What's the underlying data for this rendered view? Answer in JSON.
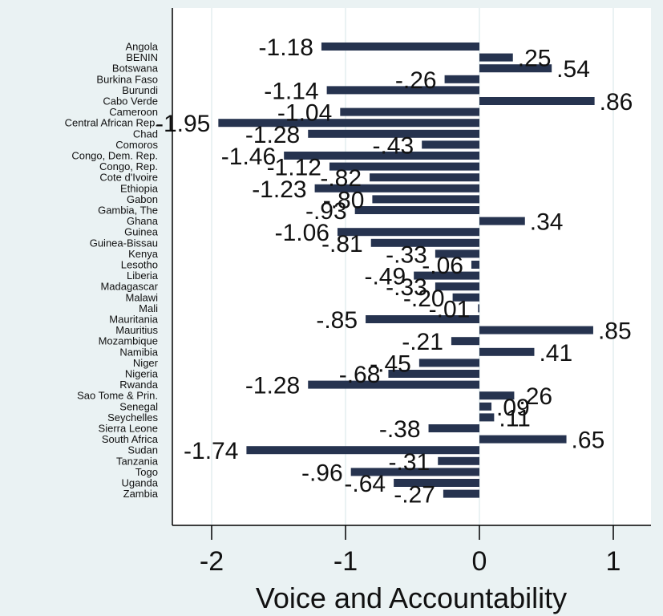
{
  "chart_data": {
    "type": "bar",
    "orientation": "horizontal",
    "xlabel": "Voice and Accountability",
    "ylabel": "",
    "title": "",
    "xlim": [
      -2.3,
      1.3
    ],
    "xticks": [
      -2,
      -1,
      0,
      1
    ],
    "tick_labels": [
      "-2",
      "-1",
      "0",
      "1"
    ],
    "grid": true,
    "legend": "none",
    "bar_color": "#26334f",
    "gridline_color": "#ffffff",
    "background_color": "#eaf2f3",
    "plot_background_color": "#ffffff",
    "categories": [
      "Angola",
      "BENIN",
      "Botswana",
      "Burkina Faso",
      "Burundi",
      "Cabo Verde",
      "Cameroon",
      "Central African Rep.",
      "Chad",
      "Comoros",
      "Congo, Dem. Rep.",
      "Congo, Rep.",
      "Cote d'Ivoire",
      "Ethiopia",
      "Gabon",
      "Gambia, The",
      "Ghana",
      "Guinea",
      "Guinea-Bissau",
      "Kenya",
      "Lesotho",
      "Liberia",
      "Madagascar",
      "Malawi",
      "Mali",
      "Mauritania",
      "Mauritius",
      "Mozambique",
      "Namibia",
      "Niger",
      "Nigeria",
      "Rwanda",
      "Sao Tome & Prin.",
      "Senegal",
      "Seychelles",
      "Sierra Leone",
      "South Africa",
      "Sudan",
      "Tanzania",
      "Togo",
      "Uganda",
      "Zambia"
    ],
    "values": [
      -1.18,
      0.25,
      0.54,
      -0.26,
      -1.14,
      0.86,
      -1.04,
      -1.95,
      -1.28,
      -0.43,
      -1.46,
      -1.12,
      -0.82,
      -1.23,
      -0.8,
      -0.93,
      0.34,
      -1.06,
      -0.81,
      -0.33,
      -0.06,
      -0.49,
      -0.33,
      -0.2,
      -0.01,
      -0.85,
      0.85,
      -0.21,
      0.41,
      -0.45,
      -0.68,
      -1.28,
      0.26,
      0.09,
      0.11,
      -0.38,
      0.65,
      -1.74,
      -0.31,
      -0.96,
      -0.64,
      -0.27
    ],
    "data_labels": [
      "-1.18",
      ".25",
      ".54",
      "-.26",
      "-1.14",
      ".86",
      "-1.04",
      "-1.95",
      "-1.28",
      "-.43",
      "-1.46",
      "-1.12",
      "-.82",
      "-1.23",
      "-.80",
      "-.93",
      ".34",
      "-1.06",
      "-.81",
      "-.33",
      "-.06",
      "-.49",
      "-.33",
      "-.20",
      "-.01",
      "-.85",
      ".85",
      "-.21",
      ".41",
      "-.45",
      "-.68",
      "-1.28",
      ".26",
      ".09",
      ".11",
      "-.38",
      ".65",
      "-1.74",
      "-.31",
      "-.96",
      "-.64",
      "-.27"
    ]
  }
}
